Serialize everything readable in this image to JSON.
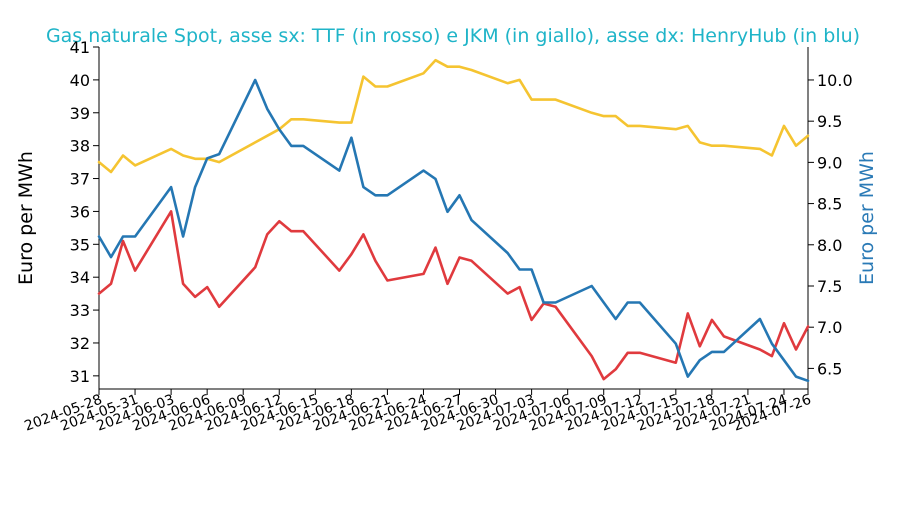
{
  "chart_data": {
    "type": "line",
    "title": "Gas naturale Spot, asse sx: TTF (in rosso) e JKM (in giallo), asse dx: HenryHub (in blu)",
    "ylabel_left": "Euro per MWh",
    "ylabel_right": "Euro per MWh",
    "ylim_left": [
      30.6,
      41
    ],
    "ylim_right": [
      6.25,
      10.4
    ],
    "yticks_left": [
      31,
      32,
      33,
      34,
      35,
      36,
      37,
      38,
      39,
      40,
      41
    ],
    "yticks_right": [
      "6.5",
      "7.0",
      "7.5",
      "8.0",
      "8.5",
      "9.0",
      "9.5",
      "10.0"
    ],
    "x_start": "2024-05-28",
    "x_end": "2024-07-26",
    "xticks": [
      "2024-05-28",
      "2024-05-31",
      "2024-06-03",
      "2024-06-06",
      "2024-06-09",
      "2024-06-12",
      "2024-06-15",
      "2024-06-18",
      "2024-06-21",
      "2024-06-24",
      "2024-06-27",
      "2024-06-30",
      "2024-07-03",
      "2024-07-06",
      "2024-07-09",
      "2024-07-12",
      "2024-07-15",
      "2024-07-18",
      "2024-07-21",
      "2024-07-24",
      "2024-07-26"
    ],
    "colors": {
      "TTF": "#e03a3e",
      "JKM": "#f5c431",
      "HenryHub": "#2577b3",
      "title": "#1fb4c8",
      "right_axis_label": "#2a7ab6"
    },
    "series": [
      {
        "id": "TTF",
        "axis": "left",
        "x": [
          "2024-05-28",
          "2024-05-29",
          "2024-05-30",
          "2024-05-31",
          "2024-06-03",
          "2024-06-04",
          "2024-06-05",
          "2024-06-06",
          "2024-06-07",
          "2024-06-10",
          "2024-06-11",
          "2024-06-12",
          "2024-06-13",
          "2024-06-14",
          "2024-06-17",
          "2024-06-18",
          "2024-06-19",
          "2024-06-20",
          "2024-06-21",
          "2024-06-24",
          "2024-06-25",
          "2024-06-26",
          "2024-06-27",
          "2024-06-28",
          "2024-07-01",
          "2024-07-02",
          "2024-07-03",
          "2024-07-04",
          "2024-07-05",
          "2024-07-08",
          "2024-07-09",
          "2024-07-10",
          "2024-07-11",
          "2024-07-12",
          "2024-07-15",
          "2024-07-16",
          "2024-07-17",
          "2024-07-18",
          "2024-07-19",
          "2024-07-22",
          "2024-07-23",
          "2024-07-24",
          "2024-07-25",
          "2024-07-26"
        ],
        "y": [
          33.5,
          33.8,
          35.1,
          34.2,
          36.0,
          33.8,
          33.4,
          33.7,
          33.1,
          34.3,
          35.3,
          35.7,
          35.4,
          35.4,
          34.2,
          34.7,
          35.3,
          34.5,
          33.9,
          34.1,
          34.9,
          33.8,
          34.6,
          34.5,
          33.5,
          33.7,
          32.7,
          33.2,
          33.1,
          31.6,
          30.9,
          31.2,
          31.7,
          31.7,
          31.4,
          32.9,
          31.9,
          32.7,
          32.2,
          31.8,
          31.6,
          32.6,
          31.8,
          32.5
        ]
      },
      {
        "id": "JKM",
        "axis": "left",
        "x": [
          "2024-05-28",
          "2024-05-29",
          "2024-05-30",
          "2024-05-31",
          "2024-06-03",
          "2024-06-04",
          "2024-06-05",
          "2024-06-06",
          "2024-06-07",
          "2024-06-10",
          "2024-06-11",
          "2024-06-12",
          "2024-06-13",
          "2024-06-14",
          "2024-06-17",
          "2024-06-18",
          "2024-06-19",
          "2024-06-20",
          "2024-06-21",
          "2024-06-24",
          "2024-06-25",
          "2024-06-26",
          "2024-06-27",
          "2024-06-28",
          "2024-07-01",
          "2024-07-02",
          "2024-07-03",
          "2024-07-04",
          "2024-07-05",
          "2024-07-08",
          "2024-07-09",
          "2024-07-10",
          "2024-07-11",
          "2024-07-12",
          "2024-07-15",
          "2024-07-16",
          "2024-07-17",
          "2024-07-18",
          "2024-07-19",
          "2024-07-22",
          "2024-07-23",
          "2024-07-24",
          "2024-07-25",
          "2024-07-26"
        ],
        "y": [
          37.5,
          37.2,
          37.7,
          37.4,
          37.9,
          37.7,
          37.6,
          37.6,
          37.5,
          38.1,
          38.3,
          38.5,
          38.8,
          38.8,
          38.7,
          38.7,
          40.1,
          39.8,
          39.8,
          40.2,
          40.6,
          40.4,
          40.4,
          40.3,
          39.9,
          40.0,
          39.4,
          39.4,
          39.4,
          39.0,
          38.9,
          38.9,
          38.6,
          38.6,
          38.5,
          38.6,
          38.1,
          38.0,
          38.0,
          37.9,
          37.7,
          38.6,
          38.0,
          38.3
        ]
      },
      {
        "id": "HenryHub",
        "axis": "right",
        "x": [
          "2024-05-28",
          "2024-05-29",
          "2024-05-30",
          "2024-05-31",
          "2024-06-03",
          "2024-06-04",
          "2024-06-05",
          "2024-06-06",
          "2024-06-07",
          "2024-06-10",
          "2024-06-11",
          "2024-06-12",
          "2024-06-13",
          "2024-06-14",
          "2024-06-17",
          "2024-06-18",
          "2024-06-19",
          "2024-06-20",
          "2024-06-21",
          "2024-06-24",
          "2024-06-25",
          "2024-06-26",
          "2024-06-27",
          "2024-06-28",
          "2024-07-01",
          "2024-07-02",
          "2024-07-03",
          "2024-07-04",
          "2024-07-05",
          "2024-07-08",
          "2024-07-09",
          "2024-07-10",
          "2024-07-11",
          "2024-07-12",
          "2024-07-15",
          "2024-07-16",
          "2024-07-17",
          "2024-07-18",
          "2024-07-19",
          "2024-07-22",
          "2024-07-23",
          "2024-07-24",
          "2024-07-25",
          "2024-07-26"
        ],
        "y": [
          8.1,
          7.85,
          8.1,
          8.1,
          8.7,
          8.1,
          8.7,
          9.05,
          9.1,
          10.0,
          9.65,
          9.4,
          9.2,
          9.2,
          8.9,
          9.3,
          8.7,
          8.6,
          8.6,
          8.9,
          8.8,
          8.4,
          8.6,
          8.3,
          7.9,
          7.7,
          7.7,
          7.3,
          7.3,
          7.5,
          7.3,
          7.1,
          7.3,
          7.3,
          6.8,
          6.4,
          6.6,
          6.7,
          6.7,
          7.1,
          6.8,
          6.6,
          6.4,
          6.35
        ]
      }
    ]
  }
}
